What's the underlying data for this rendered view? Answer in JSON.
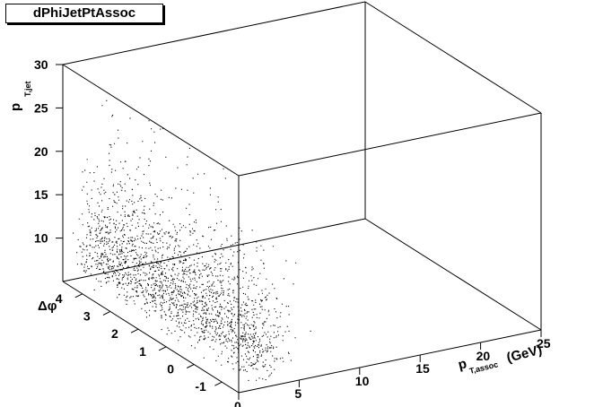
{
  "title": "dPhiJetPtAssoc",
  "chart_data": {
    "type": "scatter",
    "title": "dPhiJetPtAssoc",
    "x_axis": {
      "label": "p",
      "label_sub": "T,assoc",
      "label_unit": "(GeV)",
      "range": [
        0,
        25
      ],
      "ticks": [
        "0",
        "5",
        "10",
        "15",
        "20",
        "25"
      ]
    },
    "y_axis": {
      "label": "Δφ",
      "range": [
        -1.6,
        4.7
      ],
      "ticks": [
        "-1",
        "0",
        "1",
        "2",
        "3",
        "4"
      ]
    },
    "z_axis": {
      "label": "p",
      "label_sub": "T,jet",
      "range": [
        5,
        30
      ],
      "ticks": [
        "10",
        "15",
        "20",
        "25",
        "30"
      ]
    },
    "marker_color": "#000000",
    "distribution": "dense point cloud: p_T,assoc concentrated at 0–4 GeV, Δφ spread over -1.6 to 4.7, p_T,jet mostly 5–20 with sparse tail up to ~28",
    "grid": false,
    "legend": "none"
  }
}
